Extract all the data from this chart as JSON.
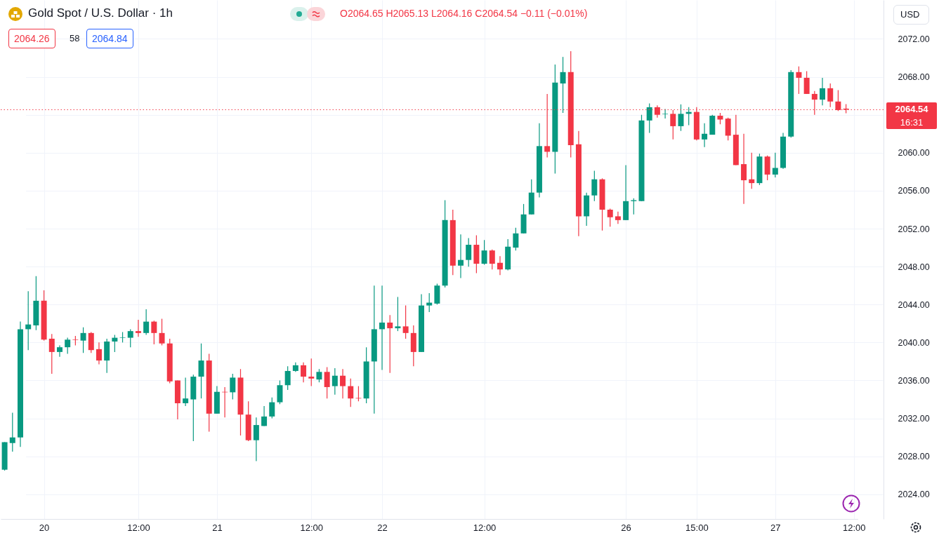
{
  "chart_data": {
    "type": "candlestick",
    "title": "Gold Spot / U.S. Dollar · 1h",
    "subtitle": "O2064.65 H2065.13 L2064.16 C2064.54 −0.11 (−0.01%)",
    "categories": [
      null,
      null,
      null,
      null,
      null,
      "20",
      null,
      null,
      null,
      null,
      null,
      null,
      null,
      null,
      null,
      null,
      null,
      "12:00",
      null,
      null,
      null,
      null,
      null,
      null,
      null,
      null,
      null,
      "21",
      null,
      null,
      null,
      null,
      null,
      null,
      null,
      null,
      null,
      null,
      null,
      "12:00",
      null,
      null,
      null,
      null,
      null,
      null,
      null,
      null,
      "22",
      null,
      null,
      null,
      null,
      null,
      null,
      null,
      null,
      null,
      null,
      null,
      null,
      "12:00",
      null,
      null,
      null,
      null,
      null,
      null,
      null,
      null,
      null,
      null,
      null,
      null,
      null,
      null,
      null,
      null,
      null,
      "26",
      null,
      null,
      null,
      null,
      null,
      null,
      null,
      null,
      "15:00",
      null,
      null,
      null,
      null,
      null,
      null,
      null,
      null,
      null,
      "27",
      null,
      null,
      null,
      null,
      null,
      null,
      null,
      null,
      null,
      "12:00"
    ],
    "ohlc": [
      [
        2026.6,
        2029.5,
        2026.5,
        2029.5
      ],
      [
        2029.4,
        2032.6,
        2028.5,
        2030.0
      ],
      [
        2030.0,
        2042.2,
        2029.0,
        2041.4
      ],
      [
        2041.4,
        2045.4,
        2039.2,
        2041.9
      ],
      [
        2041.8,
        2047.0,
        2041.3,
        2044.4
      ],
      [
        2044.4,
        2045.5,
        2040.2,
        2040.3
      ],
      [
        2040.4,
        2040.9,
        2036.7,
        2039.0
      ],
      [
        2039.0,
        2039.7,
        2038.5,
        2039.5
      ],
      [
        2039.5,
        2040.5,
        2038.8,
        2040.3
      ],
      [
        2040.3,
        2040.7,
        2039.7,
        2040.25
      ],
      [
        2040.2,
        2041.6,
        2038.9,
        2041.0
      ],
      [
        2041.0,
        2041.1,
        2038.9,
        2039.2
      ],
      [
        2039.3,
        2040.0,
        2037.7,
        2038.1
      ],
      [
        2038.1,
        2040.4,
        2036.8,
        2040.1
      ],
      [
        2040.1,
        2040.8,
        2039.0,
        2040.5
      ],
      [
        2040.5,
        2041.1,
        2040.0,
        2040.55
      ],
      [
        2040.5,
        2041.4,
        2039.5,
        2041.2
      ],
      [
        2041.2,
        2042.4,
        2040.6,
        2041.0
      ],
      [
        2041.0,
        2043.5,
        2040.8,
        2042.2
      ],
      [
        2042.2,
        2042.3,
        2039.8,
        2041.0
      ],
      [
        2041.0,
        2042.5,
        2039.7,
        2039.9
      ],
      [
        2039.9,
        2040.4,
        2035.7,
        2035.9
      ],
      [
        2036.0,
        2036.0,
        2031.9,
        2033.6
      ],
      [
        2033.6,
        2036.3,
        2033.3,
        2034.1
      ],
      [
        2034.0,
        2036.6,
        2029.6,
        2036.4
      ],
      [
        2036.4,
        2039.9,
        2034.1,
        2038.1
      ],
      [
        2038.1,
        2038.8,
        2030.6,
        2032.5
      ],
      [
        2032.5,
        2035.4,
        2032.5,
        2034.8
      ],
      [
        2034.8,
        2035.3,
        2032.1,
        2034.75
      ],
      [
        2034.75,
        2036.7,
        2034.0,
        2036.3
      ],
      [
        2036.3,
        2037.2,
        2030.2,
        2032.4
      ],
      [
        2032.4,
        2033.8,
        2029.6,
        2029.7
      ],
      [
        2029.7,
        2032.1,
        2027.5,
        2031.3
      ],
      [
        2031.2,
        2033.3,
        2031.2,
        2032.2
      ],
      [
        2032.2,
        2034.2,
        2032.0,
        2033.7
      ],
      [
        2033.7,
        2036.0,
        2033.5,
        2035.5
      ],
      [
        2035.5,
        2037.5,
        2035.0,
        2037.0
      ],
      [
        2037.0,
        2037.9,
        2036.9,
        2037.6
      ],
      [
        2037.6,
        2037.9,
        2035.8,
        2036.4
      ],
      [
        2036.4,
        2038.3,
        2035.4,
        2036.2
      ],
      [
        2036.1,
        2037.2,
        2035.8,
        2036.9
      ],
      [
        2036.9,
        2037.4,
        2034.1,
        2035.3
      ],
      [
        2035.4,
        2037.3,
        2034.5,
        2036.5
      ],
      [
        2036.5,
        2037.2,
        2034.1,
        2035.4
      ],
      [
        2035.4,
        2036.2,
        2033.2,
        2034.1
      ],
      [
        2034.15,
        2035.4,
        2033.8,
        2034.1
      ],
      [
        2034.1,
        2039.5,
        2033.6,
        2038.0
      ],
      [
        2038.0,
        2046.0,
        2032.5,
        2041.4
      ],
      [
        2041.4,
        2046.0,
        2037.1,
        2042.1
      ],
      [
        2042.1,
        2042.9,
        2036.8,
        2041.5
      ],
      [
        2041.5,
        2044.8,
        2041.2,
        2041.7
      ],
      [
        2041.7,
        2043.9,
        2040.4,
        2041.0
      ],
      [
        2041.0,
        2041.8,
        2037.5,
        2039.0
      ],
      [
        2039.0,
        2045.1,
        2039.0,
        2043.9
      ],
      [
        2043.9,
        2045.2,
        2043.2,
        2044.2
      ],
      [
        2044.1,
        2046.2,
        2044.0,
        2046.0
      ],
      [
        2046.0,
        2055.0,
        2045.8,
        2052.9
      ],
      [
        2052.9,
        2054.0,
        2047.1,
        2048.1
      ],
      [
        2048.1,
        2051.4,
        2046.8,
        2048.7
      ],
      [
        2048.7,
        2051.0,
        2048.0,
        2050.3
      ],
      [
        2050.3,
        2051.3,
        2047.3,
        2048.3
      ],
      [
        2048.3,
        2050.8,
        2048.2,
        2049.7
      ],
      [
        2049.7,
        2049.8,
        2047.7,
        2048.3
      ],
      [
        2048.4,
        2049.1,
        2047.1,
        2047.7
      ],
      [
        2047.7,
        2050.9,
        2047.6,
        2050.1
      ],
      [
        2050.0,
        2052.1,
        2049.7,
        2051.5
      ],
      [
        2051.5,
        2054.6,
        2051.5,
        2053.5
      ],
      [
        2053.5,
        2057.2,
        2053.5,
        2055.8
      ],
      [
        2055.8,
        2063.1,
        2055.3,
        2060.7
      ],
      [
        2060.7,
        2066.2,
        2059.5,
        2060.1
      ],
      [
        2060.1,
        2069.3,
        2057.8,
        2067.4
      ],
      [
        2067.3,
        2070.1,
        2064.2,
        2068.5
      ],
      [
        2068.5,
        2070.7,
        2059.5,
        2060.8
      ],
      [
        2060.9,
        2062.3,
        2051.2,
        2053.3
      ],
      [
        2053.3,
        2055.8,
        2052.3,
        2055.5
      ],
      [
        2055.5,
        2058.1,
        2054.9,
        2057.2
      ],
      [
        2057.2,
        2057.3,
        2051.8,
        2054.0
      ],
      [
        2054.0,
        2054.1,
        2052.2,
        2053.2
      ],
      [
        2053.3,
        2053.8,
        2052.5,
        2052.9
      ],
      [
        2052.9,
        2058.7,
        2052.9,
        2054.9
      ],
      [
        2054.9,
        2055.2,
        2053.5,
        2055.0
      ],
      [
        2054.9,
        2064.0,
        2054.9,
        2063.4
      ],
      [
        2063.4,
        2065.2,
        2062.1,
        2064.8
      ],
      [
        2064.8,
        2065.0,
        2063.7,
        2064.0
      ],
      [
        2064.05,
        2064.6,
        2063.6,
        2064.1
      ],
      [
        2064.1,
        2064.5,
        2061.4,
        2062.8
      ],
      [
        2062.8,
        2065.1,
        2062.3,
        2064.1
      ],
      [
        2064.1,
        2064.8,
        2062.9,
        2064.3
      ],
      [
        2064.3,
        2064.8,
        2061.3,
        2061.4
      ],
      [
        2061.4,
        2063.1,
        2060.6,
        2062.0
      ],
      [
        2061.9,
        2064.0,
        2061.9,
        2063.9
      ],
      [
        2063.9,
        2064.2,
        2063.0,
        2063.5
      ],
      [
        2063.6,
        2063.7,
        2061.3,
        2061.8
      ],
      [
        2061.9,
        2064.0,
        2058.7,
        2058.7
      ],
      [
        2058.8,
        2062.0,
        2054.6,
        2057.1
      ],
      [
        2057.2,
        2060.0,
        2056.2,
        2056.8
      ],
      [
        2056.8,
        2059.9,
        2056.6,
        2059.6
      ],
      [
        2059.6,
        2059.7,
        2057.1,
        2057.7
      ],
      [
        2057.7,
        2060.0,
        2057.4,
        2058.4
      ],
      [
        2058.4,
        2062.1,
        2058.3,
        2061.7
      ],
      [
        2061.7,
        2068.7,
        2061.6,
        2068.5
      ],
      [
        2068.5,
        2069.1,
        2066.2,
        2067.9
      ],
      [
        2067.9,
        2068.6,
        2066.2,
        2066.2
      ],
      [
        2066.2,
        2066.5,
        2064.0,
        2065.6
      ],
      [
        2065.6,
        2067.9,
        2065.0,
        2066.8
      ],
      [
        2066.8,
        2067.3,
        2064.8,
        2065.4
      ],
      [
        2065.4,
        2066.6,
        2064.4,
        2064.5
      ],
      [
        2064.65,
        2065.13,
        2064.16,
        2064.54
      ],
      null
    ],
    "colors": [
      "#089981",
      "#089981",
      "#089981",
      "#089981",
      "#089981",
      "#f23645",
      "#f23645",
      "#089981",
      "#089981",
      "#f23645",
      "#089981",
      "#f23645",
      "#f23645",
      "#089981",
      "#089981",
      "#089981",
      "#089981",
      "#f23645",
      "#089981",
      "#f23645",
      "#f23645",
      "#f23645",
      "#f23645",
      "#089981",
      "#089981",
      "#089981",
      "#f23645",
      "#089981",
      "#f23645",
      "#089981",
      "#f23645",
      "#f23645",
      "#089981",
      "#089981",
      "#089981",
      "#089981",
      "#089981",
      "#089981",
      "#f23645",
      "#f23645",
      "#089981",
      "#f23645",
      "#089981",
      "#f23645",
      "#f23645",
      "#f23645",
      "#089981",
      "#089981",
      "#089981",
      "#f23645",
      "#089981",
      "#f23645",
      "#f23645",
      "#089981",
      "#089981",
      "#089981",
      "#089981",
      "#f23645",
      "#089981",
      "#089981",
      "#f23645",
      "#089981",
      "#f23645",
      "#f23645",
      "#089981",
      "#089981",
      "#089981",
      "#089981",
      "#089981",
      "#f23645",
      "#089981",
      "#089981",
      "#f23645",
      "#f23645",
      "#089981",
      "#089981",
      "#f23645",
      "#f23645",
      "#f23645",
      "#089981",
      "#089981",
      "#089981",
      "#089981",
      "#f23645",
      "#089981",
      "#f23645",
      "#089981",
      "#089981",
      "#f23645",
      "#089981",
      "#089981",
      "#f23645",
      "#f23645",
      "#f23645",
      "#f23645",
      "#f23645",
      "#089981",
      "#f23645",
      "#089981",
      "#089981",
      "#089981",
      "#f23645",
      "#f23645",
      "#f23645",
      "#089981",
      "#f23645",
      "#f23645",
      "#f23645",
      null
    ],
    "ylim": [
      2021.4,
      2076.1
    ],
    "yticks": [
      {
        "value": 2024,
        "label": "2024.00"
      },
      {
        "value": 2028,
        "label": "2028.00"
      },
      {
        "value": 2032,
        "label": "2032.00"
      },
      {
        "value": 2036,
        "label": "2036.00"
      },
      {
        "value": 2040,
        "label": "2040.00"
      },
      {
        "value": 2044,
        "label": "2044.00"
      },
      {
        "value": 2048,
        "label": "2048.00"
      },
      {
        "value": 2052,
        "label": "2052.00"
      },
      {
        "value": 2056,
        "label": "2056.00"
      },
      {
        "value": 2060,
        "label": "2060.00"
      },
      {
        "value": 2064,
        "label": null
      },
      {
        "value": 2068,
        "label": "2068.00"
      },
      {
        "value": 2072,
        "label": "2072.00"
      }
    ],
    "grid": true,
    "ref_lines": [
      {
        "axis": "y",
        "value": 2064.54,
        "label": "2064.54",
        "color": "#f23645",
        "line_style": "dotted"
      }
    ],
    "annotations": [
      "2064.26",
      "58",
      "2064.84",
      "USD",
      "16:31"
    ]
  }
}
